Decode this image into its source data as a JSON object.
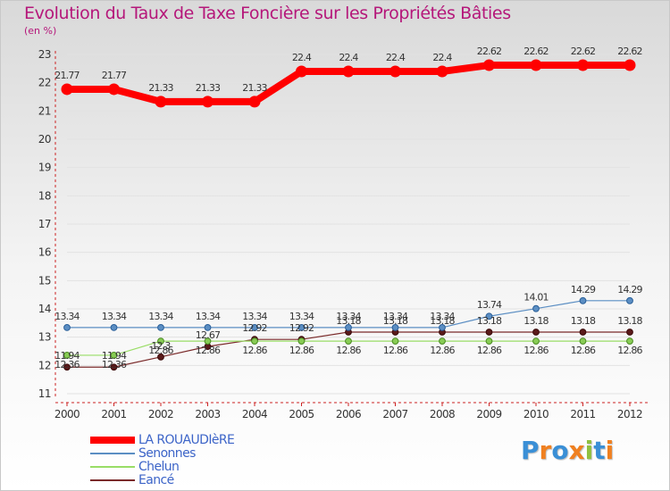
{
  "chart_data": {
    "type": "line",
    "title": "Evolution du Taux de Taxe Foncière sur les Propriétés Bâties",
    "ylabel": "(en %)",
    "xlabel": "",
    "categories": [
      "2000",
      "2001",
      "2002",
      "2003",
      "2004",
      "2005",
      "2006",
      "2007",
      "2008",
      "2009",
      "2010",
      "2011",
      "2012"
    ],
    "ylim": [
      11,
      23
    ],
    "yticks": [
      11,
      12,
      13,
      14,
      15,
      16,
      17,
      18,
      19,
      20,
      21,
      22,
      23
    ],
    "series": [
      {
        "name": "LA ROUAUDIèRE",
        "color": "#ff0000",
        "values": [
          21.77,
          21.77,
          21.33,
          21.33,
          21.33,
          22.4,
          22.4,
          22.4,
          22.4,
          22.62,
          22.62,
          22.62,
          22.62
        ],
        "labels": [
          "21.77",
          "21.77",
          "21.33",
          "21.33",
          "21.33",
          "22.4",
          "22.4",
          "22.4",
          "22.4",
          "22.62",
          "22.62",
          "22.62",
          "22.62"
        ]
      },
      {
        "name": "Senonnes",
        "color": "#5b8ec3",
        "values": [
          13.34,
          13.34,
          13.34,
          13.34,
          13.34,
          13.34,
          13.34,
          13.34,
          13.34,
          13.74,
          14.01,
          14.29,
          14.29
        ],
        "labels": [
          "13.34",
          "13.34",
          "13.34",
          "13.34",
          "13.34",
          "13.34",
          "13.34",
          "13.34",
          "13.34",
          "13.74",
          "14.01",
          "14.29",
          "14.29"
        ]
      },
      {
        "name": "Chelun",
        "color": "#99dd66",
        "values": [
          12.36,
          12.36,
          12.86,
          12.86,
          12.86,
          12.86,
          12.86,
          12.86,
          12.86,
          12.86,
          12.86,
          12.86,
          12.86
        ],
        "labels": [
          "12.36",
          "12.36",
          "12.86",
          "12.86",
          "12.86",
          "12.86",
          "12.86",
          "12.86",
          "12.86",
          "12.86",
          "12.86",
          "12.86",
          "12.86"
        ]
      },
      {
        "name": "Eancé",
        "color": "#7a2a2a",
        "values": [
          11.94,
          11.94,
          12.3,
          12.67,
          12.92,
          12.92,
          13.18,
          13.18,
          13.18,
          13.18,
          13.18,
          13.18,
          13.18
        ],
        "labels": [
          "11.94",
          "11.94",
          "12.3",
          "12.67",
          "12.92",
          "12.92",
          "13.18",
          "13.18",
          "13.18",
          "13.18",
          "13.18",
          "13.18",
          "13.18"
        ]
      }
    ]
  },
  "logo": {
    "text": "Proxiti",
    "letters": [
      "P",
      "r",
      "o",
      "x",
      "i",
      "t",
      "i"
    ],
    "colors": [
      "#3a8fd6",
      "#f08020",
      "#3a8fd6",
      "#f08020",
      "#90c040",
      "#3a8fd6",
      "#f08020"
    ]
  }
}
